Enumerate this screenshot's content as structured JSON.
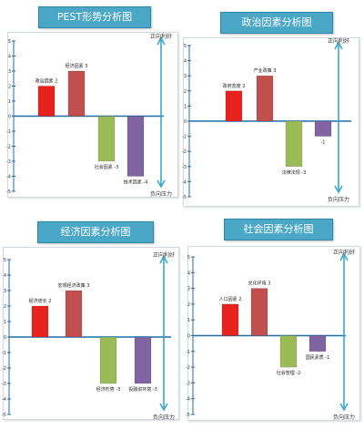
{
  "charts": [
    {
      "title": "PEST形势分析图",
      "top_label": "正向利好",
      "bottom_label": "负向压力"
    },
    {
      "title": "政治因素分析图",
      "top_label": "正向利好",
      "bottom_label": "负向压力"
    },
    {
      "title": "经济因素分析图",
      "top_label": "正向利好",
      "bottom_label": "负向压力"
    },
    {
      "title": "社会因素分析图",
      "top_label": "正向利好",
      "bottom_label": "负向压力"
    }
  ],
  "chart_data": [
    {
      "type": "bar",
      "title": "PEST形势分析图",
      "ylim": [
        -5,
        5
      ],
      "yticks": [
        5,
        4,
        3,
        2,
        1,
        0,
        -1,
        -2,
        -3,
        -4,
        -5
      ],
      "categories": [
        "政治因素 2",
        "经济因素 3",
        "社会因素 -3",
        "技术因素 -4"
      ],
      "values": [
        2,
        3,
        -3,
        -4
      ],
      "colors": [
        "#e8221f",
        "#c0504d",
        "#9bbb59",
        "#8064a2"
      ]
    },
    {
      "type": "bar",
      "title": "政治因素分析图",
      "ylim": [
        -5,
        5
      ],
      "yticks": [
        5,
        4,
        3,
        2,
        1,
        0,
        -1,
        -2,
        -3,
        -4,
        -5
      ],
      "categories": [
        "政府态度 2",
        "产业政策 3",
        "法律法规 -3",
        "-1"
      ],
      "values": [
        2,
        3,
        -3,
        -1
      ],
      "colors": [
        "#e8221f",
        "#c0504d",
        "#9bbb59",
        "#8064a2"
      ]
    },
    {
      "type": "bar",
      "title": "经济因素分析图",
      "ylim": [
        -5,
        5
      ],
      "yticks": [
        5,
        4,
        3,
        2,
        1,
        0,
        -1,
        -2,
        -3,
        -4,
        -5
      ],
      "categories": [
        "经济增长 2",
        "宏观经济政策 3",
        "经济形势 -3",
        "投融资环境 -3"
      ],
      "values": [
        2,
        3,
        -3,
        -3
      ],
      "colors": [
        "#e8221f",
        "#c0504d",
        "#9bbb59",
        "#8064a2"
      ]
    },
    {
      "type": "bar",
      "title": "社会因素分析图",
      "ylim": [
        -5,
        5
      ],
      "yticks": [
        5,
        4,
        3,
        2,
        1,
        0,
        -1,
        -2,
        -3,
        -4,
        -5
      ],
      "categories": [
        "人口因素 2",
        "文化环境 3",
        "社会管理 -2",
        "国民素质 -1"
      ],
      "values": [
        2,
        3,
        -2,
        -1
      ],
      "colors": [
        "#e8221f",
        "#c0504d",
        "#9bbb59",
        "#8064a2"
      ]
    }
  ]
}
